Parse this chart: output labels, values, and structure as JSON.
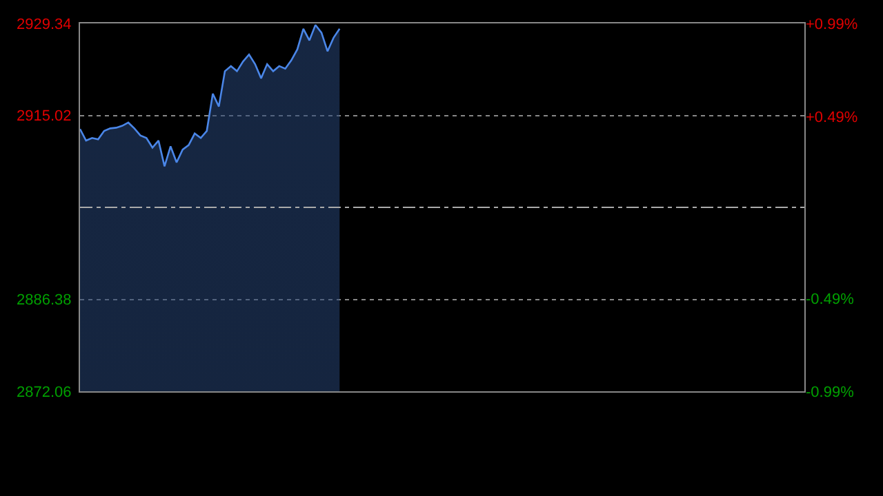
{
  "chart_data": {
    "type": "area",
    "categories": [
      null,
      null,
      null,
      null,
      null,
      null,
      null,
      null,
      null,
      null,
      null,
      null,
      null,
      null,
      null,
      null,
      null,
      null,
      null,
      null,
      null,
      null,
      null,
      null,
      null,
      null,
      null,
      null,
      null,
      null,
      null,
      null,
      null,
      null,
      null,
      null,
      null,
      null,
      null,
      null,
      null,
      null,
      null,
      null,
      null,
      null,
      null,
      null,
      null,
      null,
      null,
      null,
      null,
      null,
      null,
      null,
      null,
      null,
      null,
      null,
      null,
      null,
      null,
      null,
      null,
      null,
      null,
      null,
      null,
      null,
      null,
      null,
      null,
      null,
      null,
      null,
      null,
      null,
      null,
      null,
      null,
      null,
      null,
      null,
      null,
      null,
      null,
      null,
      null,
      null,
      null,
      null,
      null,
      null,
      null,
      null,
      null,
      null,
      null,
      null,
      null,
      null,
      null,
      null,
      null,
      null,
      null,
      null,
      null,
      null,
      null,
      null,
      null,
      null,
      null,
      null,
      null,
      null,
      null,
      null,
      null
    ],
    "series": [
      {
        "color": "#4a86e8",
        "values": [
          2912.9,
          2911.1,
          2911.5,
          2911.3,
          2912.6,
          2913.0,
          2913.1,
          2913.4,
          2913.9,
          2913.0,
          2911.9,
          2911.5,
          2910.0,
          2911.1,
          2907.1,
          2910.2,
          2907.7,
          2909.7,
          2910.4,
          2912.2,
          2911.5,
          2912.6,
          2918.4,
          2916.4,
          2921.9,
          2922.7,
          2921.9,
          2923.4,
          2924.5,
          2923.0,
          2920.8,
          2923.0,
          2921.9,
          2922.7,
          2922.3,
          2923.6,
          2925.3,
          2928.5,
          2926.7,
          2929.1,
          2927.9,
          2925.0,
          2927.1,
          2928.5,
          null,
          null,
          null,
          null,
          null,
          null,
          null,
          null,
          null,
          null,
          null,
          null,
          null,
          null,
          null,
          null,
          null,
          null,
          null,
          null,
          null,
          null,
          null,
          null,
          null,
          null,
          null,
          null,
          null,
          null,
          null,
          null,
          null,
          null,
          null,
          null,
          null,
          null,
          null,
          null,
          null,
          null,
          null,
          null,
          null,
          null,
          null,
          null,
          null,
          null,
          null,
          null,
          null,
          null,
          null,
          null,
          null,
          null,
          null,
          null,
          null,
          null,
          null,
          null,
          null,
          null,
          null,
          null,
          null,
          null,
          null,
          null,
          null,
          null,
          null,
          null,
          null
        ]
      }
    ],
    "ylim": [
      2872.06,
      2929.34
    ],
    "yticks": [
      2872.06,
      2886.38,
      2915.02,
      2929.34
    ],
    "y2lim": [
      -0.99,
      0.99
    ],
    "y2ticks": [
      {
        "value": -0.99,
        "label": "-0.99%"
      },
      {
        "value": -0.49,
        "label": "-0.49%"
      },
      {
        "value": 0.49,
        "label": "+0.49%"
      },
      {
        "value": 0.99,
        "label": "+0.99%"
      }
    ],
    "ref_lines": [
      {
        "axis": "y",
        "value": 2900.7,
        "color": "#aaaaaa",
        "line_style": "dashed"
      }
    ],
    "grid": "y"
  }
}
